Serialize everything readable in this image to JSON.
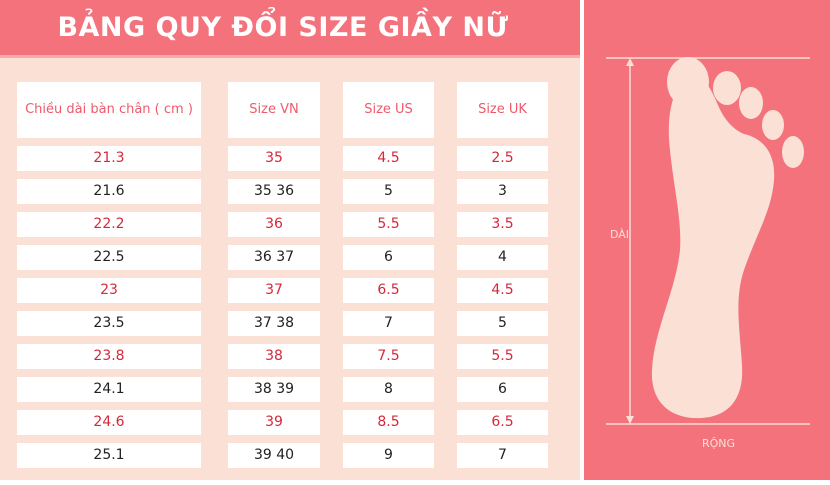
{
  "title": "BẢNG QUY ĐỔI SIZE GIẦY NỮ",
  "table": {
    "headers": [
      "Chiều dài bàn chân ( cm )",
      "Size VN",
      "Size US",
      "Size UK"
    ],
    "rows": [
      [
        "21.3",
        "35",
        "4.5",
        "2.5"
      ],
      [
        "21.6",
        "35 36",
        "5",
        "3"
      ],
      [
        "22.2",
        "36",
        "5.5",
        "3.5"
      ],
      [
        "22.5",
        "36 37",
        "6",
        "4"
      ],
      [
        "23",
        "37",
        "6.5",
        "4.5"
      ],
      [
        "23.5",
        "37 38",
        "7",
        "5"
      ],
      [
        "23.8",
        "38",
        "7.5",
        "5.5"
      ],
      [
        "24.1",
        "38 39",
        "8",
        "6"
      ],
      [
        "24.6",
        "39",
        "8.5",
        "6.5"
      ],
      [
        "25.1",
        "39 40",
        "9",
        "7"
      ]
    ]
  },
  "diagram": {
    "length_label": "DÀI",
    "width_label": "RỘNG"
  },
  "colors": {
    "accent": "#f3727b",
    "panel_bg": "#fbe0d6",
    "highlight_text": "#d6283a",
    "foot_fill": "#fbe0d6"
  },
  "icons": [
    "foot-outline-icon"
  ]
}
